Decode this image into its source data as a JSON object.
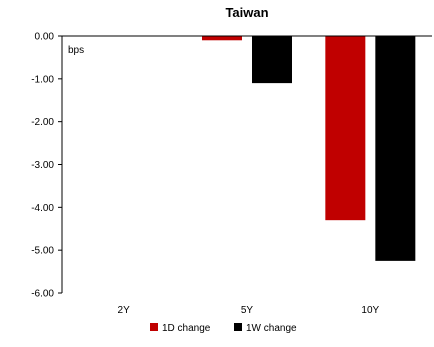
{
  "chart_data": {
    "type": "bar",
    "title": "Taiwan",
    "ylabel": "bps",
    "categories": [
      "2Y",
      "5Y",
      "10Y"
    ],
    "series": [
      {
        "name": "1D change",
        "color": "#c00000",
        "values": [
          0.0,
          -0.1,
          -4.3
        ]
      },
      {
        "name": "1W change",
        "color": "#000000",
        "values": [
          0.0,
          -1.1,
          -5.25
        ]
      }
    ],
    "ylim": [
      -6.0,
      0.0
    ],
    "yticks": [
      "0.00",
      "-1.00",
      "-2.00",
      "-3.00",
      "-4.00",
      "-5.00",
      "-6.00"
    ],
    "ytick_values": [
      0,
      -1,
      -2,
      -3,
      -4,
      -5,
      -6
    ],
    "grid": false,
    "legend_position": "bottom"
  }
}
